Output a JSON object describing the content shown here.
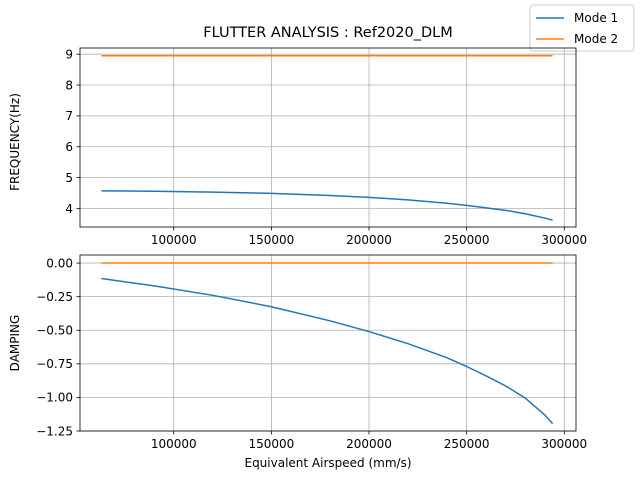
{
  "chart_data": {
    "type": "line",
    "title": "FLUTTER ANALYSIS : Ref2020_DLM",
    "legend": {
      "placement": "top-right",
      "entries": [
        "Mode 1",
        "Mode 2"
      ]
    },
    "colors": [
      "#1f77b4",
      "#ff7f0e"
    ],
    "grid": true,
    "xlabel": "Equivalent Airspeed (mm/s)",
    "xlim": [
      52000,
      306000
    ],
    "xticks": [
      100000,
      150000,
      200000,
      250000,
      300000
    ],
    "xtick_labels": [
      "100000",
      "150000",
      "200000",
      "250000",
      "300000"
    ],
    "x": [
      63000,
      90000,
      120000,
      150000,
      180000,
      200000,
      220000,
      240000,
      250000,
      260000,
      270000,
      280000,
      290000,
      294000
    ],
    "subplots": [
      {
        "ylabel": "FREQUENCY(Hz)",
        "ylim": [
          3.4,
          9.2
        ],
        "yticks": [
          4,
          5,
          6,
          7,
          8,
          9
        ],
        "ytick_labels": [
          "4",
          "5",
          "6",
          "7",
          "8",
          "9"
        ],
        "series": [
          {
            "name": "Mode 1",
            "values": [
              4.57,
              4.56,
              4.53,
              4.49,
              4.42,
              4.36,
              4.28,
              4.17,
              4.1,
              4.02,
              3.94,
              3.83,
              3.69,
              3.62
            ]
          },
          {
            "name": "Mode 2",
            "values": [
              8.95,
              8.95,
              8.95,
              8.95,
              8.95,
              8.95,
              8.95,
              8.95,
              8.95,
              8.95,
              8.95,
              8.95,
              8.95,
              8.95
            ]
          }
        ]
      },
      {
        "ylabel": "DAMPING",
        "ylim": [
          -1.25,
          0.06
        ],
        "yticks": [
          0.0,
          -0.25,
          -0.5,
          -0.75,
          -1.0,
          -1.25
        ],
        "ytick_labels": [
          "0.00",
          "−0.25",
          "−0.50",
          "−0.75",
          "−1.00",
          "−1.25"
        ],
        "series": [
          {
            "name": "Mode 1",
            "values": [
              -0.115,
              -0.17,
              -0.24,
              -0.325,
              -0.43,
              -0.51,
              -0.6,
              -0.705,
              -0.77,
              -0.84,
              -0.915,
              -1.005,
              -1.13,
              -1.195
            ]
          },
          {
            "name": "Mode 2",
            "values": [
              0,
              0,
              0,
              0,
              0,
              0,
              0,
              0,
              0,
              0,
              0,
              0,
              0,
              0
            ]
          }
        ]
      }
    ]
  }
}
